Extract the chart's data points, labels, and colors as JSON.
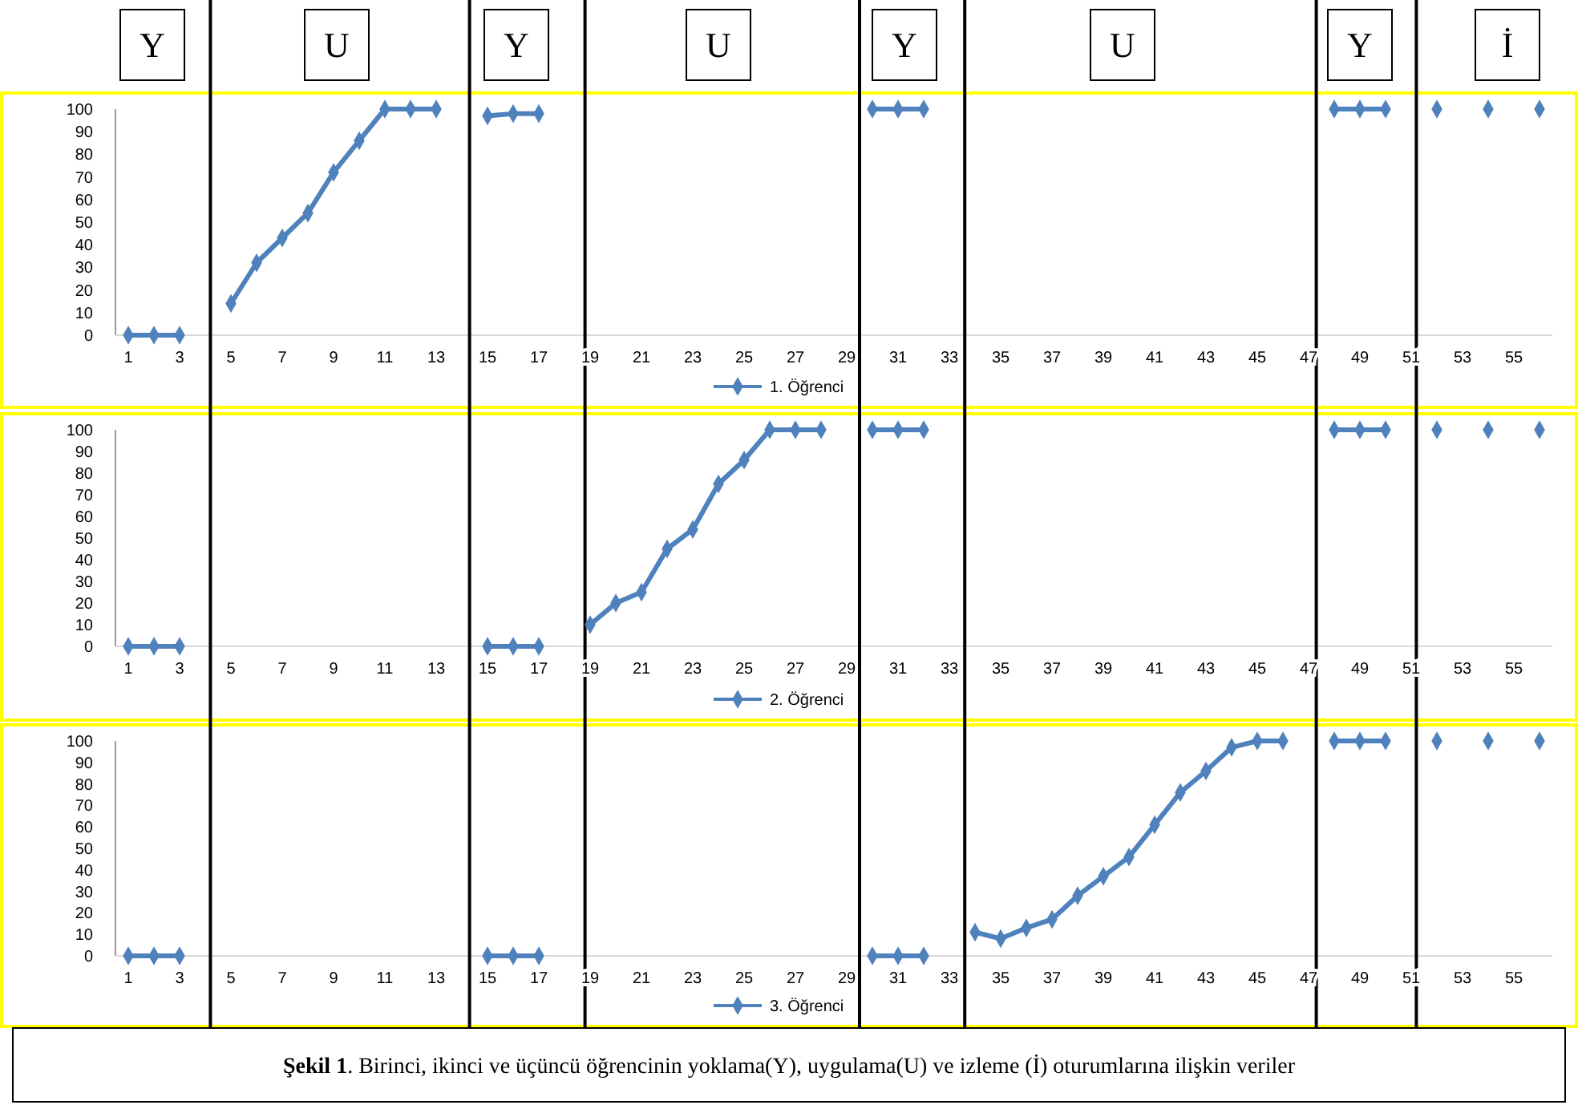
{
  "chart_data": [
    {
      "type": "line",
      "x": [
        1,
        2,
        3,
        4,
        5,
        6,
        7,
        8,
        9,
        10,
        11,
        12,
        13,
        14,
        15,
        16,
        17,
        18,
        19,
        20,
        21,
        22,
        23,
        24,
        25,
        26,
        27,
        28,
        29,
        30,
        31,
        32,
        33,
        34,
        35,
        36,
        37,
        38,
        39,
        40,
        41,
        42,
        43,
        44,
        45,
        46,
        47,
        48,
        49,
        50,
        51,
        52,
        53,
        54,
        55,
        56
      ],
      "series": [
        {
          "name": "1. Öğrenci",
          "color": "#4f81bd",
          "values": [
            0,
            0,
            0,
            null,
            14,
            32,
            43,
            54,
            72,
            86,
            100,
            100,
            100,
            null,
            97,
            98,
            98,
            null,
            null,
            null,
            null,
            null,
            null,
            null,
            null,
            null,
            null,
            null,
            null,
            100,
            100,
            100,
            null,
            null,
            null,
            null,
            null,
            null,
            null,
            null,
            null,
            null,
            null,
            null,
            null,
            null,
            null,
            100,
            100,
            100,
            null,
            100,
            null,
            100,
            null,
            100
          ]
        }
      ],
      "xlim": [
        0.5,
        56.5
      ],
      "xticks": [
        1,
        3,
        5,
        7,
        9,
        11,
        13,
        15,
        17,
        19,
        21,
        23,
        25,
        27,
        29,
        31,
        33,
        35,
        37,
        39,
        41,
        43,
        45,
        47,
        49,
        51,
        53,
        55
      ],
      "ylim": [
        0,
        100
      ],
      "yticks": [
        0,
        10,
        20,
        30,
        40,
        50,
        60,
        70,
        80,
        90,
        100
      ],
      "grid": false,
      "legend": "bottom",
      "marker": "diamond",
      "line_style": "solid",
      "ref_lines": [
        {
          "axis": "x",
          "value": 4.2,
          "color": "#000000"
        },
        {
          "axis": "x",
          "value": 14.3,
          "color": "#000000"
        },
        {
          "axis": "x",
          "value": 18.8,
          "color": "#000000"
        },
        {
          "axis": "x",
          "value": 29.5,
          "color": "#000000"
        },
        {
          "axis": "x",
          "value": 33.6,
          "color": "#000000"
        },
        {
          "axis": "x",
          "value": 47.3,
          "color": "#000000"
        },
        {
          "axis": "x",
          "value": 51.2,
          "color": "#000000"
        }
      ],
      "annotations": [
        "Y",
        "U",
        "Y",
        "U",
        "Y",
        "U",
        "Y",
        "İ"
      ]
    },
    {
      "type": "line",
      "x": [
        1,
        2,
        3,
        4,
        5,
        6,
        7,
        8,
        9,
        10,
        11,
        12,
        13,
        14,
        15,
        16,
        17,
        18,
        19,
        20,
        21,
        22,
        23,
        24,
        25,
        26,
        27,
        28,
        29,
        30,
        31,
        32,
        33,
        34,
        35,
        36,
        37,
        38,
        39,
        40,
        41,
        42,
        43,
        44,
        45,
        46,
        47,
        48,
        49,
        50,
        51,
        52,
        53,
        54,
        55,
        56
      ],
      "series": [
        {
          "name": "2. Öğrenci",
          "color": "#4f81bd",
          "values": [
            0,
            0,
            0,
            null,
            null,
            null,
            null,
            null,
            null,
            null,
            null,
            null,
            null,
            null,
            0,
            0,
            0,
            null,
            10,
            20,
            25,
            45,
            54,
            75,
            86,
            100,
            100,
            100,
            null,
            100,
            100,
            100,
            null,
            null,
            null,
            null,
            null,
            null,
            null,
            null,
            null,
            null,
            null,
            null,
            null,
            null,
            null,
            100,
            100,
            100,
            null,
            100,
            null,
            100,
            null,
            100
          ]
        }
      ],
      "xlim": [
        0.5,
        56.5
      ],
      "xticks": [
        1,
        3,
        5,
        7,
        9,
        11,
        13,
        15,
        17,
        19,
        21,
        23,
        25,
        27,
        29,
        31,
        33,
        35,
        37,
        39,
        41,
        43,
        45,
        47,
        49,
        51,
        53,
        55
      ],
      "ylim": [
        0,
        100
      ],
      "yticks": [
        0,
        10,
        20,
        30,
        40,
        50,
        60,
        70,
        80,
        90,
        100
      ],
      "grid": false,
      "legend": "bottom",
      "marker": "diamond",
      "line_style": "solid",
      "ref_lines": [
        {
          "axis": "x",
          "value": 4.2,
          "color": "#000000"
        },
        {
          "axis": "x",
          "value": 14.3,
          "color": "#000000"
        },
        {
          "axis": "x",
          "value": 18.8,
          "color": "#000000"
        },
        {
          "axis": "x",
          "value": 29.5,
          "color": "#000000"
        },
        {
          "axis": "x",
          "value": 33.6,
          "color": "#000000"
        },
        {
          "axis": "x",
          "value": 47.3,
          "color": "#000000"
        },
        {
          "axis": "x",
          "value": 51.2,
          "color": "#000000"
        }
      ]
    },
    {
      "type": "line",
      "x": [
        1,
        2,
        3,
        4,
        5,
        6,
        7,
        8,
        9,
        10,
        11,
        12,
        13,
        14,
        15,
        16,
        17,
        18,
        19,
        20,
        21,
        22,
        23,
        24,
        25,
        26,
        27,
        28,
        29,
        30,
        31,
        32,
        33,
        34,
        35,
        36,
        37,
        38,
        39,
        40,
        41,
        42,
        43,
        44,
        45,
        46,
        47,
        48,
        49,
        50,
        51,
        52,
        53,
        54,
        55,
        56
      ],
      "series": [
        {
          "name": "3. Öğrenci",
          "color": "#4f81bd",
          "values": [
            0,
            0,
            0,
            null,
            null,
            null,
            null,
            null,
            null,
            null,
            null,
            null,
            null,
            null,
            0,
            0,
            0,
            null,
            null,
            null,
            null,
            null,
            null,
            null,
            null,
            null,
            null,
            null,
            null,
            0,
            0,
            0,
            null,
            11,
            8,
            13,
            17,
            28,
            37,
            46,
            61,
            76,
            86,
            97,
            100,
            100,
            null,
            100,
            100,
            100,
            null,
            100,
            null,
            100,
            null,
            100
          ]
        }
      ],
      "xlim": [
        0.5,
        56.5
      ],
      "xticks": [
        1,
        3,
        5,
        7,
        9,
        11,
        13,
        15,
        17,
        19,
        21,
        23,
        25,
        27,
        29,
        31,
        33,
        35,
        37,
        39,
        41,
        43,
        45,
        47,
        49,
        51,
        53,
        55
      ],
      "ylim": [
        0,
        100
      ],
      "yticks": [
        0,
        10,
        20,
        30,
        40,
        50,
        60,
        70,
        80,
        90,
        100
      ],
      "grid": false,
      "legend": "bottom",
      "marker": "diamond",
      "line_style": "solid",
      "ref_lines": [
        {
          "axis": "x",
          "value": 4.2,
          "color": "#000000"
        },
        {
          "axis": "x",
          "value": 14.3,
          "color": "#000000"
        },
        {
          "axis": "x",
          "value": 18.8,
          "color": "#000000"
        },
        {
          "axis": "x",
          "value": 29.5,
          "color": "#000000"
        },
        {
          "axis": "x",
          "value": 33.6,
          "color": "#000000"
        },
        {
          "axis": "x",
          "value": 47.3,
          "color": "#000000"
        },
        {
          "axis": "x",
          "value": 51.2,
          "color": "#000000"
        }
      ],
      "annotations": [
        "Şekil 1. Birinci, ikinci ve üçüncü öğrencinin yoklama(Y), uygulama(U) ve izleme (İ) oturumlarına ilişkin veriler"
      ]
    }
  ]
}
